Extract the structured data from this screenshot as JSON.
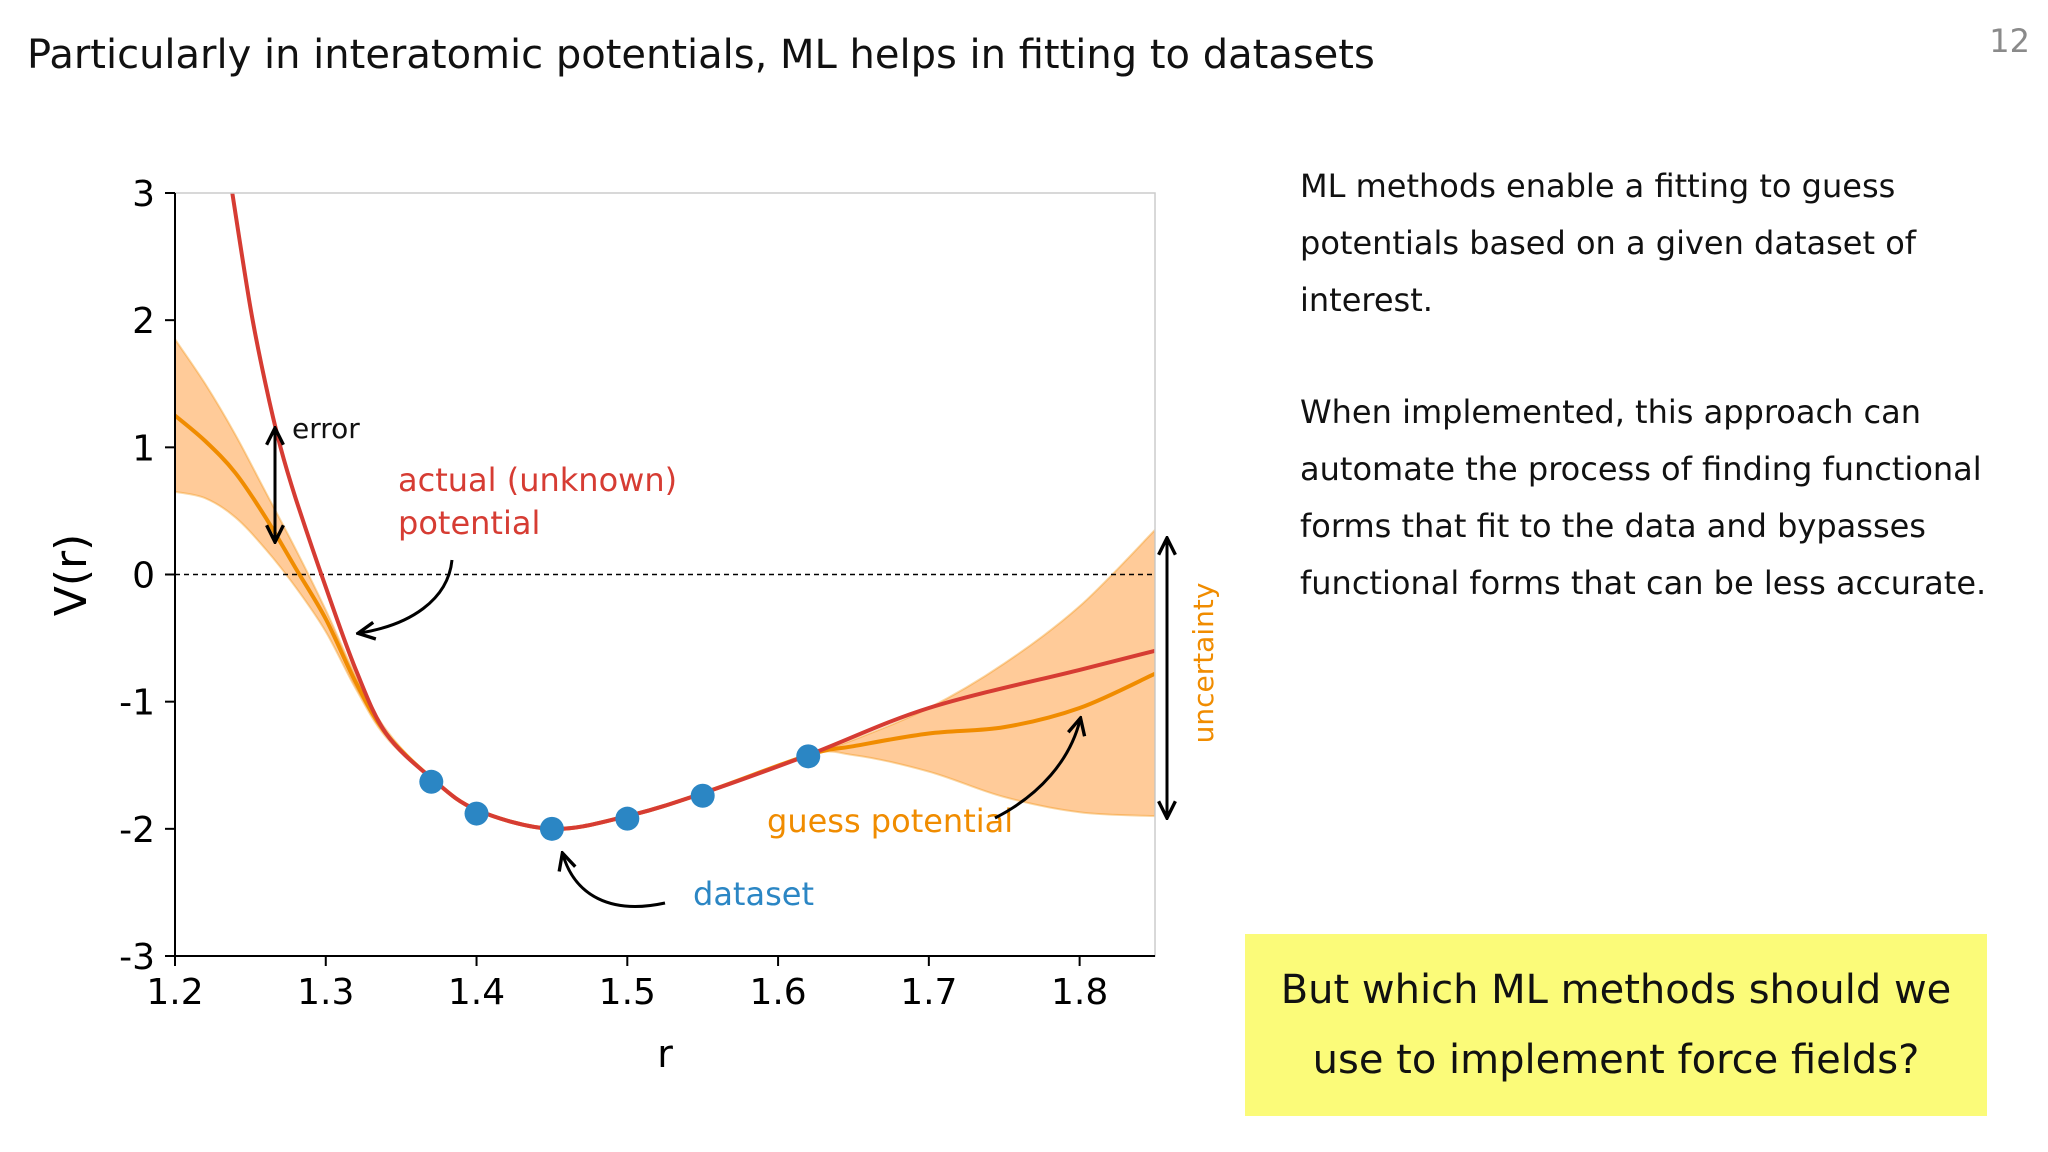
{
  "slide": {
    "title": "Particularly in interatomic potentials, ML helps in fitting to datasets",
    "page_number": "12",
    "paragraphs": [
      "ML methods enable a fitting to guess potentials based on a given dataset of interest.",
      "When implemented, this approach can automate the process of finding functional forms that fit to the data and bypasses functional forms that can be less accurate."
    ],
    "callout": "But which ML methods should we use to implement force fields?"
  },
  "colors": {
    "actual": "#d63c33",
    "guess": "#f08c00",
    "band": "#ffc58e",
    "dataset": "#2b86c4",
    "callout_bg": "#fbfb79"
  },
  "chart_data": {
    "type": "line",
    "xlabel": "r",
    "ylabel": "V(r)",
    "xlim": [
      1.2,
      1.85
    ],
    "ylim": [
      -3,
      3
    ],
    "x_ticks": [
      1.2,
      1.3,
      1.4,
      1.5,
      1.6,
      1.7,
      1.8
    ],
    "y_ticks": [
      3,
      2,
      1,
      0,
      -1,
      -2,
      -3
    ],
    "zero_line": true,
    "series": [
      {
        "name": "actual (unknown) potential",
        "x": [
          1.238,
          1.25,
          1.26,
          1.27,
          1.28,
          1.3,
          1.32,
          1.34,
          1.37,
          1.4,
          1.45,
          1.5,
          1.55,
          1.62,
          1.7,
          1.8,
          1.85
        ],
        "y": [
          3.0,
          2.1,
          1.5,
          1.0,
          0.6,
          -0.1,
          -0.75,
          -1.25,
          -1.6,
          -1.85,
          -2.0,
          -1.9,
          -1.72,
          -1.42,
          -1.05,
          -0.75,
          -0.6
        ]
      },
      {
        "name": "guess potential",
        "x": [
          1.2,
          1.22,
          1.24,
          1.26,
          1.28,
          1.3,
          1.32,
          1.34,
          1.37,
          1.4,
          1.45,
          1.5,
          1.55,
          1.62,
          1.65,
          1.7,
          1.75,
          1.8,
          1.85
        ],
        "y": [
          1.25,
          1.05,
          0.8,
          0.45,
          0.05,
          -0.35,
          -0.85,
          -1.25,
          -1.6,
          -1.85,
          -2.0,
          -1.9,
          -1.72,
          -1.42,
          -1.35,
          -1.25,
          -1.2,
          -1.05,
          -0.78
        ]
      }
    ],
    "uncertainty_band": {
      "x": [
        1.2,
        1.22,
        1.24,
        1.26,
        1.28,
        1.3,
        1.32,
        1.34,
        1.37,
        1.4,
        1.45,
        1.5,
        1.55,
        1.62,
        1.65,
        1.7,
        1.75,
        1.8,
        1.85
      ],
      "upper": [
        1.85,
        1.5,
        1.1,
        0.65,
        0.2,
        -0.28,
        -0.8,
        -1.22,
        -1.6,
        -1.85,
        -2.0,
        -1.9,
        -1.72,
        -1.42,
        -1.3,
        -1.05,
        -0.7,
        -0.25,
        0.35
      ],
      "lower": [
        0.65,
        0.6,
        0.45,
        0.2,
        -0.1,
        -0.45,
        -0.9,
        -1.28,
        -1.6,
        -1.85,
        -2.0,
        -1.9,
        -1.72,
        -1.42,
        -1.42,
        -1.55,
        -1.75,
        -1.87,
        -1.9
      ]
    },
    "dataset": {
      "name": "dataset",
      "x": [
        1.37,
        1.4,
        1.45,
        1.5,
        1.55,
        1.62
      ],
      "y": [
        -1.63,
        -1.88,
        -2.0,
        -1.92,
        -1.74,
        -1.43
      ]
    },
    "annotations": {
      "error": "error",
      "actual_line1": "actual (unknown)",
      "actual_line2": "potential",
      "guess": "guess potential",
      "dataset": "dataset",
      "uncertainty": "uncertainty"
    }
  }
}
